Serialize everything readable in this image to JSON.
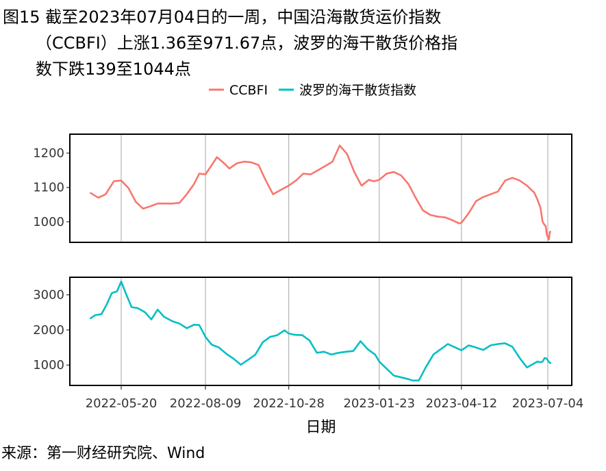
{
  "title": {
    "line1": "图15  截至2023年07月04日的一周，中国沿海散货运价指数",
    "line2": "（CCBFI）上涨1.36至971.67点，波罗的海干散货价格指",
    "line3": "数下跌139至1044点"
  },
  "source": "来源：第一财经研究院、Wind",
  "chart_data": {
    "type": "line",
    "xlabel": "日期",
    "x_ticks": [
      "2022-05-20",
      "2022-08-09",
      "2022-10-28",
      "2023-01-23",
      "2023-04-12",
      "2023-07-04"
    ],
    "grid": true,
    "legend_position": "top",
    "panels": [
      {
        "series_name": "CCBFI",
        "color": "#F8766D",
        "ylim": [
          940,
          1255
        ],
        "y_ticks": [
          1000,
          1100,
          1200
        ],
        "points": [
          [
            "2022-04-20",
            1085
          ],
          [
            "2022-04-28",
            1070
          ],
          [
            "2022-05-05",
            1080
          ],
          [
            "2022-05-13",
            1118
          ],
          [
            "2022-05-20",
            1120
          ],
          [
            "2022-05-27",
            1098
          ],
          [
            "2022-06-03",
            1058
          ],
          [
            "2022-06-10",
            1038
          ],
          [
            "2022-06-17",
            1045
          ],
          [
            "2022-06-24",
            1053
          ],
          [
            "2022-07-01",
            1053
          ],
          [
            "2022-07-08",
            1053
          ],
          [
            "2022-07-15",
            1055
          ],
          [
            "2022-07-22",
            1080
          ],
          [
            "2022-07-29",
            1110
          ],
          [
            "2022-08-03",
            1140
          ],
          [
            "2022-08-09",
            1138
          ],
          [
            "2022-08-15",
            1165
          ],
          [
            "2022-08-20",
            1188
          ],
          [
            "2022-08-27",
            1170
          ],
          [
            "2022-09-01",
            1155
          ],
          [
            "2022-09-08",
            1170
          ],
          [
            "2022-09-15",
            1175
          ],
          [
            "2022-09-22",
            1173
          ],
          [
            "2022-09-29",
            1165
          ],
          [
            "2022-10-06",
            1120
          ],
          [
            "2022-10-13",
            1080
          ],
          [
            "2022-10-20",
            1092
          ],
          [
            "2022-10-28",
            1105
          ],
          [
            "2022-11-04",
            1120
          ],
          [
            "2022-11-11",
            1140
          ],
          [
            "2022-11-18",
            1138
          ],
          [
            "2022-11-25",
            1150
          ],
          [
            "2022-12-02",
            1162
          ],
          [
            "2022-12-09",
            1175
          ],
          [
            "2022-12-16",
            1222
          ],
          [
            "2022-12-23",
            1198
          ],
          [
            "2022-12-30",
            1145
          ],
          [
            "2023-01-06",
            1105
          ],
          [
            "2023-01-13",
            1122
          ],
          [
            "2023-01-18",
            1118
          ],
          [
            "2023-01-23",
            1122
          ],
          [
            "2023-01-30",
            1140
          ],
          [
            "2023-02-06",
            1145
          ],
          [
            "2023-02-13",
            1135
          ],
          [
            "2023-02-20",
            1110
          ],
          [
            "2023-02-27",
            1070
          ],
          [
            "2023-03-06",
            1033
          ],
          [
            "2023-03-13",
            1020
          ],
          [
            "2023-03-20",
            1015
          ],
          [
            "2023-03-27",
            1013
          ],
          [
            "2023-04-03",
            1005
          ],
          [
            "2023-04-10",
            995
          ],
          [
            "2023-04-12",
            997
          ],
          [
            "2023-04-19",
            1025
          ],
          [
            "2023-04-26",
            1060
          ],
          [
            "2023-05-03",
            1072
          ],
          [
            "2023-05-10",
            1080
          ],
          [
            "2023-05-17",
            1088
          ],
          [
            "2023-05-24",
            1120
          ],
          [
            "2023-05-31",
            1128
          ],
          [
            "2023-06-07",
            1120
          ],
          [
            "2023-06-14",
            1105
          ],
          [
            "2023-06-21",
            1085
          ],
          [
            "2023-06-24",
            1065
          ],
          [
            "2023-06-27",
            1040
          ],
          [
            "2023-06-29",
            1000
          ],
          [
            "2023-07-01",
            990
          ],
          [
            "2023-07-02",
            987
          ],
          [
            "2023-07-03",
            963
          ],
          [
            "2023-07-04",
            956
          ],
          [
            "2023-07-05",
            948
          ],
          [
            "2023-07-06",
            970
          ],
          [
            "2023-07-07",
            972
          ]
        ]
      },
      {
        "series_name": "波罗的海干散货指数",
        "color": "#00BFC4",
        "ylim": [
          420,
          3500
        ],
        "y_ticks": [
          1000,
          2000,
          3000
        ],
        "points": [
          [
            "2022-04-20",
            2320
          ],
          [
            "2022-04-25",
            2420
          ],
          [
            "2022-05-01",
            2450
          ],
          [
            "2022-05-06",
            2720
          ],
          [
            "2022-05-11",
            3050
          ],
          [
            "2022-05-16",
            3100
          ],
          [
            "2022-05-20",
            3380
          ],
          [
            "2022-05-25",
            3000
          ],
          [
            "2022-05-30",
            2650
          ],
          [
            "2022-06-05",
            2620
          ],
          [
            "2022-06-12",
            2500
          ],
          [
            "2022-06-18",
            2300
          ],
          [
            "2022-06-24",
            2580
          ],
          [
            "2022-06-30",
            2380
          ],
          [
            "2022-07-08",
            2250
          ],
          [
            "2022-07-15",
            2180
          ],
          [
            "2022-07-22",
            2050
          ],
          [
            "2022-07-29",
            2150
          ],
          [
            "2022-08-03",
            2140
          ],
          [
            "2022-08-09",
            1800
          ],
          [
            "2022-08-15",
            1580
          ],
          [
            "2022-08-22",
            1500
          ],
          [
            "2022-08-29",
            1320
          ],
          [
            "2022-09-05",
            1180
          ],
          [
            "2022-09-12",
            1010
          ],
          [
            "2022-09-19",
            1150
          ],
          [
            "2022-09-26",
            1300
          ],
          [
            "2022-10-03",
            1650
          ],
          [
            "2022-10-10",
            1800
          ],
          [
            "2022-10-17",
            1850
          ],
          [
            "2022-10-24",
            1990
          ],
          [
            "2022-10-28",
            1900
          ],
          [
            "2022-11-03",
            1860
          ],
          [
            "2022-11-10",
            1850
          ],
          [
            "2022-11-17",
            1700
          ],
          [
            "2022-11-24",
            1350
          ],
          [
            "2022-12-01",
            1380
          ],
          [
            "2022-12-08",
            1300
          ],
          [
            "2022-12-15",
            1350
          ],
          [
            "2022-12-22",
            1380
          ],
          [
            "2022-12-29",
            1400
          ],
          [
            "2023-01-05",
            1680
          ],
          [
            "2023-01-12",
            1450
          ],
          [
            "2023-01-19",
            1300
          ],
          [
            "2023-01-23",
            1100
          ],
          [
            "2023-01-30",
            900
          ],
          [
            "2023-02-06",
            700
          ],
          [
            "2023-02-13",
            650
          ],
          [
            "2023-02-20",
            600
          ],
          [
            "2023-02-24",
            560
          ],
          [
            "2023-03-02",
            560
          ],
          [
            "2023-03-09",
            950
          ],
          [
            "2023-03-16",
            1300
          ],
          [
            "2023-03-23",
            1450
          ],
          [
            "2023-03-30",
            1600
          ],
          [
            "2023-04-06",
            1500
          ],
          [
            "2023-04-12",
            1420
          ],
          [
            "2023-04-19",
            1560
          ],
          [
            "2023-04-26",
            1500
          ],
          [
            "2023-05-03",
            1430
          ],
          [
            "2023-05-10",
            1560
          ],
          [
            "2023-05-17",
            1600
          ],
          [
            "2023-05-24",
            1620
          ],
          [
            "2023-05-31",
            1520
          ],
          [
            "2023-06-07",
            1200
          ],
          [
            "2023-06-14",
            930
          ],
          [
            "2023-06-21",
            1050
          ],
          [
            "2023-06-24",
            1100
          ],
          [
            "2023-06-27",
            1080
          ],
          [
            "2023-06-29",
            1100
          ],
          [
            "2023-07-01",
            1200
          ],
          [
            "2023-07-03",
            1183
          ],
          [
            "2023-07-05",
            1090
          ],
          [
            "2023-07-07",
            1044
          ]
        ]
      }
    ]
  }
}
